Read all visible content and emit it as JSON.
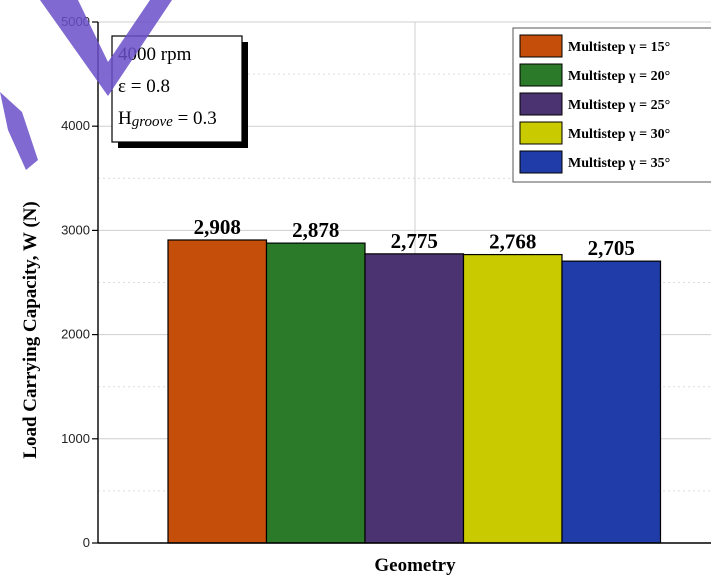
{
  "chart_data": {
    "type": "bar",
    "xlabel": "Geometry",
    "ylabel": "Load Carrying Capacity, W (N)",
    "ylim": [
      0,
      5000
    ],
    "yticks": [
      0,
      1000,
      2000,
      3000,
      4000,
      5000
    ],
    "grid": true,
    "legend_position": "top-right",
    "series": [
      {
        "name": "Multistep γ = 15°",
        "value": 2908,
        "label": "2,908",
        "color": "#C44E0A"
      },
      {
        "name": "Multistep γ = 20°",
        "value": 2878,
        "label": "2,878",
        "color": "#2A7A2A"
      },
      {
        "name": "Multistep γ = 25°",
        "value": 2775,
        "label": "2,775",
        "color": "#4B3372"
      },
      {
        "name": "Multistep γ = 30°",
        "value": 2768,
        "label": "2,768",
        "color": "#CACA00"
      },
      {
        "name": "Multistep γ = 35°",
        "value": 2705,
        "label": "2,705",
        "color": "#1F3CA8"
      }
    ]
  },
  "info_box": {
    "speed": "4000 rpm",
    "eccentricity": "ε = 0.8",
    "groove_prefix": "H",
    "groove_sub": "groove",
    "groove_value": " = 0.3"
  },
  "watermark_color": "#6A4FC8"
}
